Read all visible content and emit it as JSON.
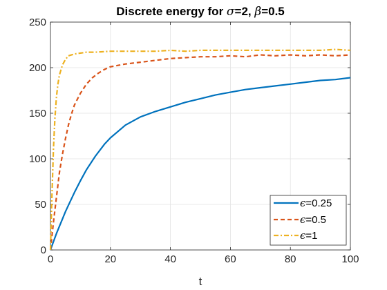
{
  "chart_data": {
    "type": "line",
    "title": {
      "prefix": "Discrete energy for ",
      "sym1": "σ",
      "mid": "=2, ",
      "sym2": "β",
      "suffix": "=0.5"
    },
    "xlabel": "t",
    "ylabel": "",
    "xlim": [
      0,
      100
    ],
    "ylim": [
      0,
      250
    ],
    "xticks": [
      0,
      20,
      40,
      60,
      80,
      100
    ],
    "yticks": [
      0,
      50,
      100,
      150,
      200,
      250
    ],
    "grid": true,
    "legend_position": "bottom-right",
    "series": [
      {
        "name": "ϵ=0.25",
        "symbol": "ϵ",
        "label_value": "=0.25",
        "color": "#0072BD",
        "dash": "solid",
        "x": [
          0,
          1,
          2,
          3,
          4,
          5,
          6,
          8,
          10,
          12,
          15,
          18,
          20,
          25,
          30,
          35,
          40,
          45,
          50,
          55,
          60,
          65,
          70,
          75,
          80,
          85,
          90,
          95,
          100
        ],
        "y": [
          0,
          9,
          18,
          26,
          34,
          42,
          49,
          63,
          76,
          88,
          103,
          116,
          123,
          137,
          146,
          152,
          157,
          162,
          166,
          170,
          173,
          176,
          178,
          180,
          182,
          184,
          186,
          187,
          189
        ]
      },
      {
        "name": "ϵ=0.5",
        "symbol": "ϵ",
        "label_value": "=0.5",
        "color": "#D95319",
        "dash": "dashed",
        "x": [
          0,
          1,
          2,
          3,
          4,
          5,
          6,
          7,
          8,
          10,
          12,
          14,
          16,
          18,
          20,
          25,
          30,
          35,
          40,
          45,
          50,
          55,
          60,
          65,
          70,
          75,
          80,
          85,
          90,
          95,
          100
        ],
        "y": [
          0,
          30,
          58,
          85,
          105,
          122,
          137,
          149,
          159,
          172,
          182,
          189,
          194,
          198,
          201,
          204,
          206,
          208,
          210,
          211,
          212,
          212,
          213,
          212,
          214,
          213,
          214,
          213,
          214,
          213,
          214
        ]
      },
      {
        "name": "ϵ=1",
        "symbol": "ϵ",
        "label_value": "=1",
        "color": "#EDB120",
        "dash": "dashdot",
        "x": [
          0,
          0.5,
          1,
          1.5,
          2,
          2.5,
          3,
          4,
          5,
          6,
          8,
          10,
          12,
          15,
          20,
          25,
          30,
          35,
          40,
          45,
          50,
          55,
          60,
          65,
          70,
          75,
          80,
          85,
          90,
          95,
          100
        ],
        "y": [
          0,
          60,
          110,
          145,
          168,
          182,
          192,
          203,
          209,
          213,
          215,
          216,
          217,
          217,
          218,
          218,
          218,
          218,
          219,
          218,
          219,
          219,
          219,
          219,
          219,
          219,
          219,
          219,
          219,
          220,
          219
        ]
      }
    ]
  }
}
